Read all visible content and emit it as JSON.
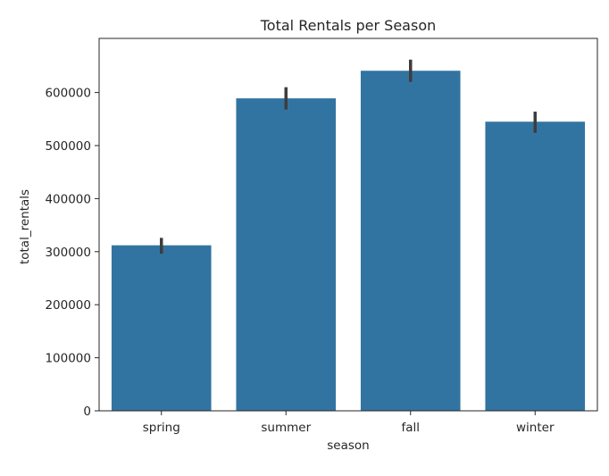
{
  "chart_data": {
    "type": "bar",
    "title": "Total Rentals per Season",
    "xlabel": "season",
    "ylabel": "total_rentals",
    "categories": [
      "spring",
      "summer",
      "fall",
      "winter"
    ],
    "values": [
      312000,
      589000,
      641000,
      545000
    ],
    "error_bars": [
      {
        "low": 296000,
        "high": 326000
      },
      {
        "low": 568000,
        "high": 610000
      },
      {
        "low": 620000,
        "high": 662000
      },
      {
        "low": 524000,
        "high": 564000
      }
    ],
    "ylim": [
      0,
      702000
    ],
    "yticks": [
      0,
      100000,
      200000,
      300000,
      400000,
      500000,
      600000
    ],
    "ytick_labels": [
      "0",
      "100000",
      "200000",
      "300000",
      "400000",
      "500000",
      "600000"
    ],
    "grid": false,
    "bar_color": "#3274a1",
    "error_color": "#3d3d3d"
  }
}
